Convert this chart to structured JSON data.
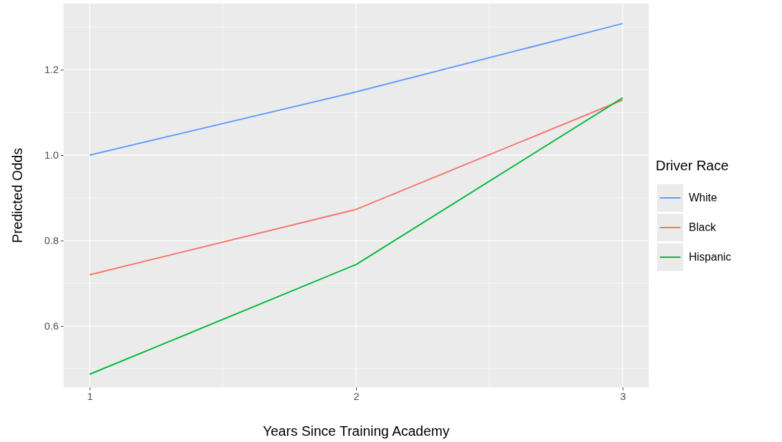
{
  "chart_data": {
    "type": "line",
    "xlabel": "Years Since Training Academy",
    "ylabel": "Predicted Odds",
    "legend_title": "Driver Race",
    "x": [
      1,
      2,
      3
    ],
    "series": [
      {
        "name": "White",
        "color": "#619cff",
        "values": [
          1.0,
          1.148,
          1.308
        ]
      },
      {
        "name": "Black",
        "color": "#f8766d",
        "values": [
          0.72,
          0.873,
          1.129
        ]
      },
      {
        "name": "Hispanic",
        "color": "#00ba38",
        "values": [
          0.487,
          0.744,
          1.134
        ]
      }
    ],
    "xlim": [
      0.902,
      3.098
    ],
    "ylim": [
      0.456,
      1.355
    ],
    "xticks": [
      1,
      2,
      3
    ],
    "yticks": [
      {
        "value": 0.6,
        "label": "0.6"
      },
      {
        "value": 0.8,
        "label": "0.8"
      },
      {
        "value": 1.0,
        "label": "1.0"
      },
      {
        "value": 1.2,
        "label": "1.2"
      }
    ],
    "grid": true,
    "legend": "right",
    "marker": "none",
    "line_style": "solid"
  }
}
